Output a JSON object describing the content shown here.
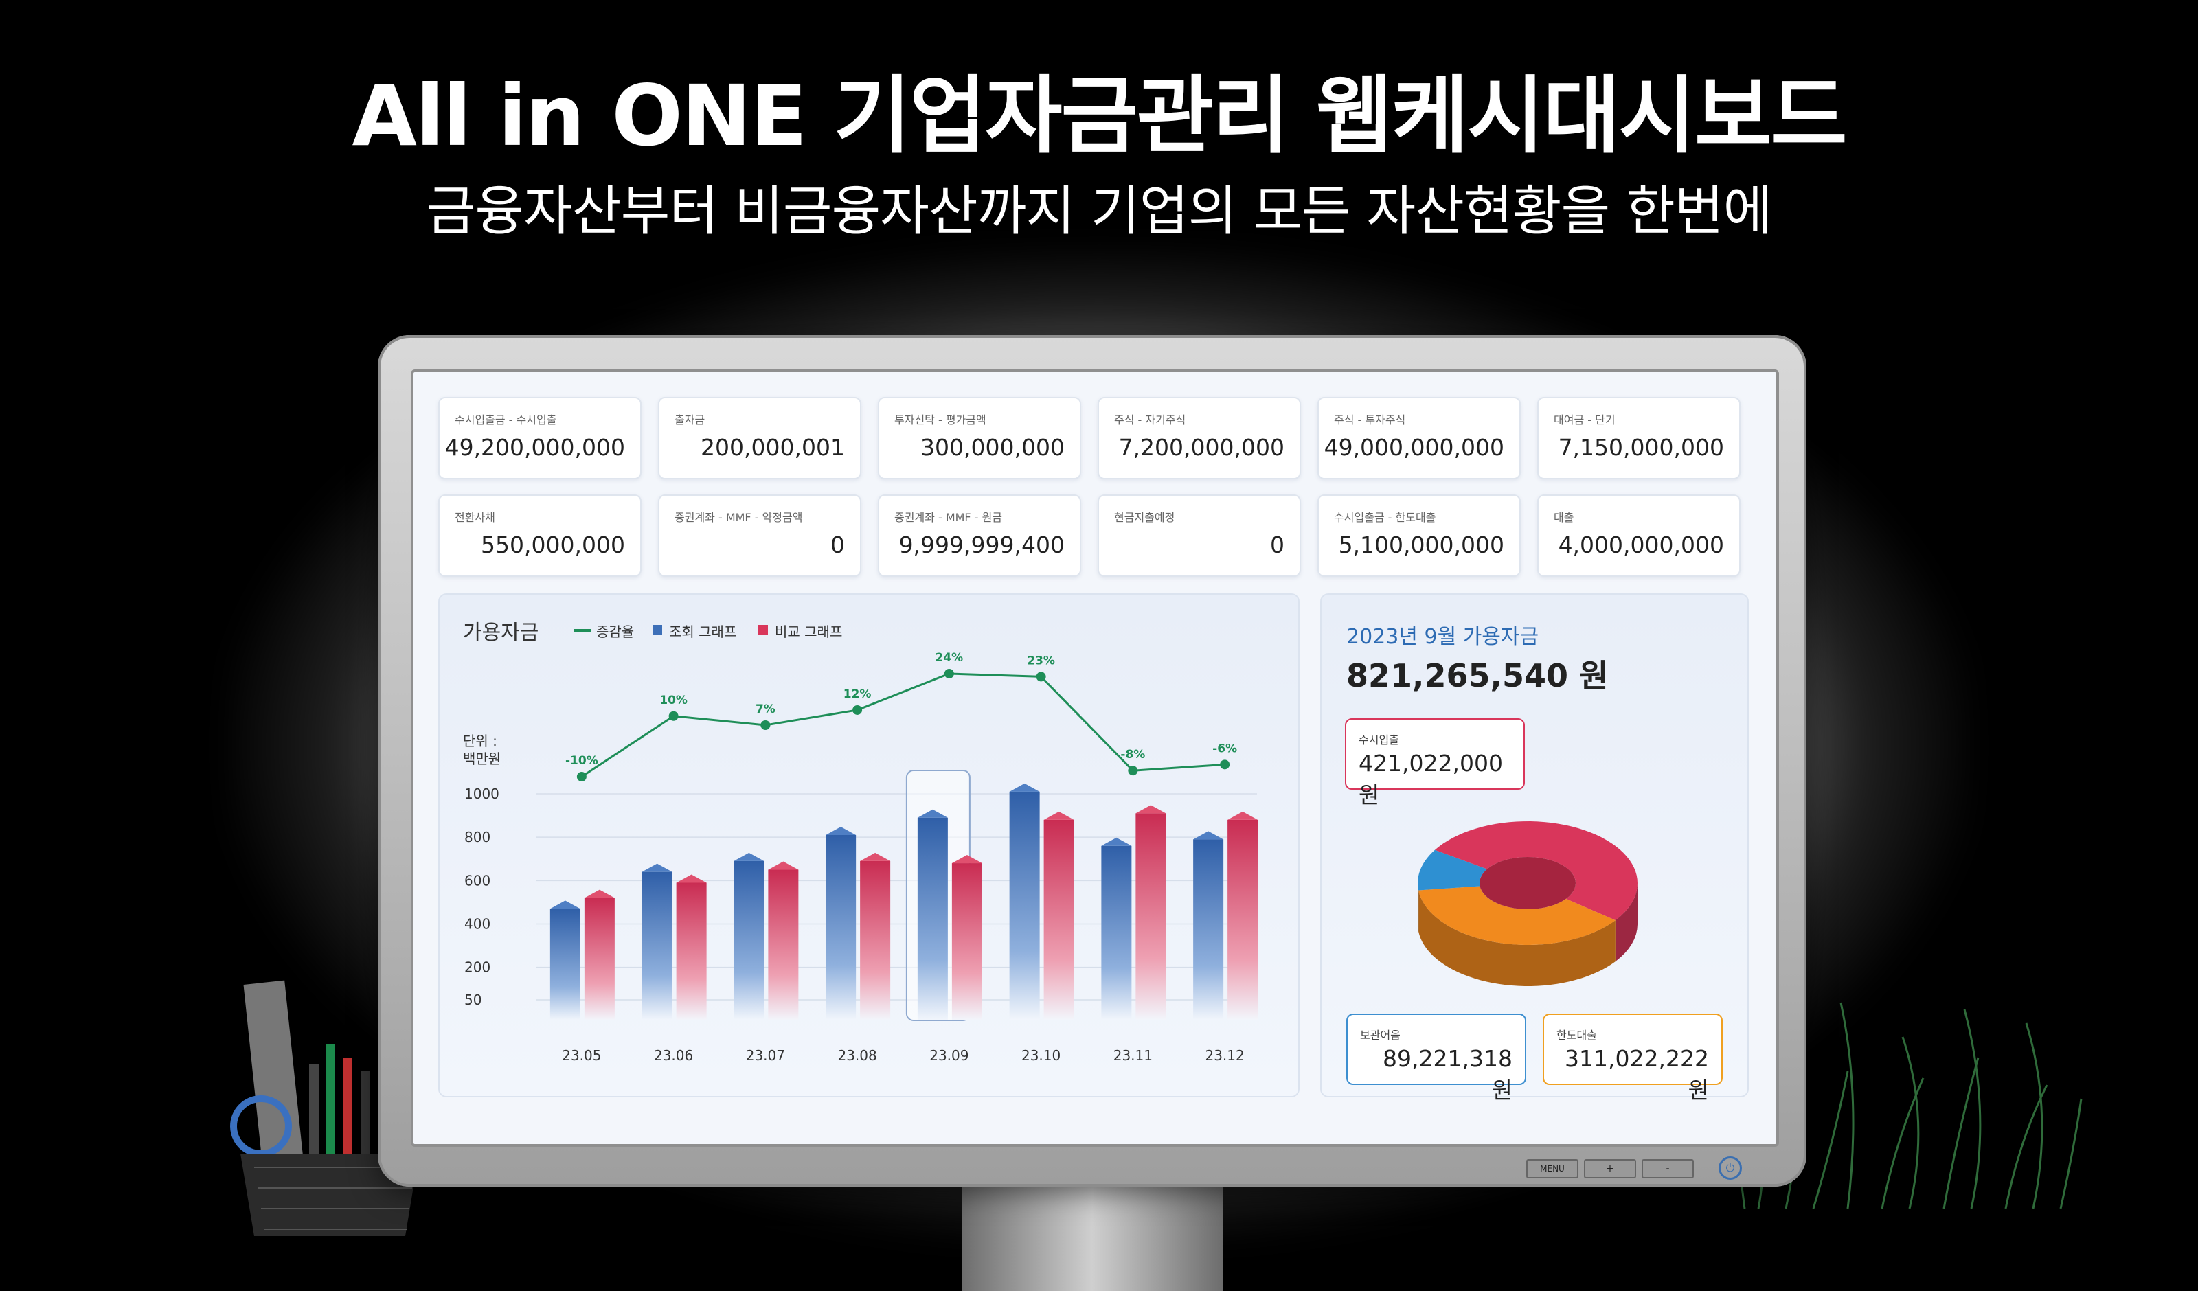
{
  "header": {
    "headline": "All in ONE 기업자금관리 웹케시대시보드",
    "subline": "금융자산부터 비금융자산까지 기업의 모든 자산현황을 한번에"
  },
  "monitor": {
    "menu_label": "MENU",
    "plus_label": "+",
    "minus_label": "-"
  },
  "kpis": [
    {
      "label": "수시입출금 - 수시입출",
      "value": "49,200,000,000"
    },
    {
      "label": "출자금",
      "value": "200,000,001"
    },
    {
      "label": "투자신탁 - 평가금액",
      "value": "300,000,000"
    },
    {
      "label": "주식 - 자기주식",
      "value": "7,200,000,000"
    },
    {
      "label": "주식 - 투자주식",
      "value": "49,000,000,000"
    },
    {
      "label": "대여금 - 단기",
      "value": "7,150,000,000"
    },
    {
      "label": "전환사채",
      "value": "550,000,000"
    },
    {
      "label": "증권계좌 - MMF - 약정금액",
      "value": "0"
    },
    {
      "label": "증권계좌 - MMF - 원금",
      "value": "9,999,999,400"
    },
    {
      "label": "현금지출예정",
      "value": "0"
    },
    {
      "label": "수시입출금 - 한도대출",
      "value": "5,100,000,000"
    },
    {
      "label": "대출",
      "value": "4,000,000,000"
    }
  ],
  "chart_panel": {
    "title": "가용자금",
    "legend": [
      "증감율",
      "조회 그래프",
      "비교 그래프"
    ],
    "unit_line1": "단위 :",
    "unit_line2": "백만원"
  },
  "chart_data": {
    "type": "bar",
    "categories": [
      "23.05",
      "23.06",
      "23.07",
      "23.08",
      "23.09",
      "23.10",
      "23.11",
      "23.12"
    ],
    "series": [
      {
        "name": "조회 그래프",
        "values": [
          470,
          640,
          690,
          810,
          890,
          1010,
          760,
          790
        ]
      },
      {
        "name": "비교 그래프",
        "values": [
          520,
          590,
          650,
          690,
          680,
          880,
          910,
          880
        ]
      }
    ],
    "rate_series": {
      "name": "증감율",
      "values": [
        -10,
        10,
        7,
        12,
        24,
        23,
        -8,
        -6
      ],
      "labels": [
        "-10%",
        "10%",
        "7%",
        "12%",
        "24%",
        "23%",
        "-8%",
        "-6%"
      ]
    },
    "y_ticks": [
      "1000",
      "800",
      "600",
      "400",
      "200",
      "50"
    ],
    "ylim": [
      50,
      1000
    ],
    "highlight_category": "23.09",
    "colors": {
      "query": "#3d6fb8",
      "compare": "#d9365b",
      "rate": "#1e8e58"
    }
  },
  "summary": {
    "title": "2023년 9월 가용자금",
    "total": "821,265,540 원",
    "cards": [
      {
        "label": "수시입출",
        "value": "421,022,000 원",
        "color": "#d9365b"
      },
      {
        "label": "보관어음",
        "value": "89,221,318 원",
        "color": "#3d8fd0"
      },
      {
        "label": "한도대출",
        "value": "311,022,222 원",
        "color": "#f0a020"
      }
    ],
    "donut": [
      {
        "name": "수시입출",
        "value": 421022000,
        "color": "#d9365b"
      },
      {
        "name": "한도대출",
        "value": 311022222,
        "color": "#f18a1e"
      },
      {
        "name": "보관어음",
        "value": 89221318,
        "color": "#2e90d2"
      }
    ]
  }
}
